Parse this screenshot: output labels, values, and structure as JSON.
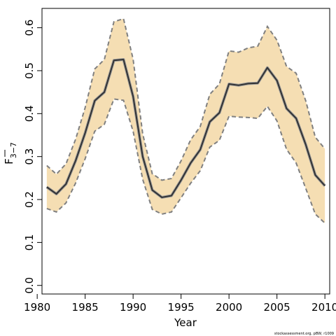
{
  "chart_data": {
    "type": "line",
    "xlabel": "Year",
    "ylabel_main": "F",
    "ylabel_sub": "3−7",
    "xlim": [
      1980.5,
      2010.5
    ],
    "ylim": [
      -0.02,
      0.645
    ],
    "x_ticks": [
      1980,
      1985,
      1990,
      1995,
      2000,
      2005,
      2010
    ],
    "x_tick_labels": [
      "1980",
      "1985",
      "1990",
      "1995",
      "2000",
      "2005",
      "2010"
    ],
    "y_ticks": [
      0.0,
      0.1,
      0.2,
      0.3,
      0.4,
      0.5,
      0.6
    ],
    "y_tick_labels": [
      "0.0",
      "0.1",
      "0.2",
      "0.3",
      "0.4",
      "0.5",
      "0.6"
    ],
    "grid": false,
    "x": [
      1981,
      1982,
      1983,
      1984,
      1985,
      1986,
      1987,
      1988,
      1989,
      1990,
      1991,
      1992,
      1993,
      1994,
      1995,
      1996,
      1997,
      1998,
      1999,
      2000,
      2001,
      2002,
      2003,
      2004,
      2005,
      2006,
      2007,
      2008,
      2009,
      2010
    ],
    "series": [
      {
        "role": "estimate",
        "values": [
          0.229,
          0.213,
          0.236,
          0.29,
          0.355,
          0.43,
          0.45,
          0.524,
          0.526,
          0.44,
          0.3,
          0.222,
          0.205,
          0.209,
          0.245,
          0.285,
          0.316,
          0.381,
          0.402,
          0.469,
          0.466,
          0.47,
          0.471,
          0.507,
          0.477,
          0.412,
          0.389,
          0.328,
          0.257,
          0.232
        ]
      },
      {
        "role": "upper",
        "values": [
          0.279,
          0.259,
          0.283,
          0.34,
          0.414,
          0.504,
          0.526,
          0.614,
          0.621,
          0.527,
          0.353,
          0.26,
          0.245,
          0.249,
          0.29,
          0.339,
          0.37,
          0.445,
          0.469,
          0.546,
          0.543,
          0.553,
          0.557,
          0.603,
          0.571,
          0.51,
          0.494,
          0.43,
          0.345,
          0.318
        ]
      },
      {
        "role": "lower",
        "values": [
          0.179,
          0.171,
          0.192,
          0.238,
          0.295,
          0.359,
          0.375,
          0.434,
          0.431,
          0.359,
          0.247,
          0.177,
          0.166,
          0.171,
          0.204,
          0.238,
          0.267,
          0.322,
          0.338,
          0.394,
          0.392,
          0.391,
          0.389,
          0.417,
          0.383,
          0.317,
          0.285,
          0.226,
          0.166,
          0.145
        ]
      }
    ],
    "colors": {
      "band": "#f5deb3",
      "band_edge": "#808080",
      "line": "#333333",
      "line_halo": "#9a9a9a"
    }
  },
  "credit": "stockassessment.org, pBW, r1009"
}
